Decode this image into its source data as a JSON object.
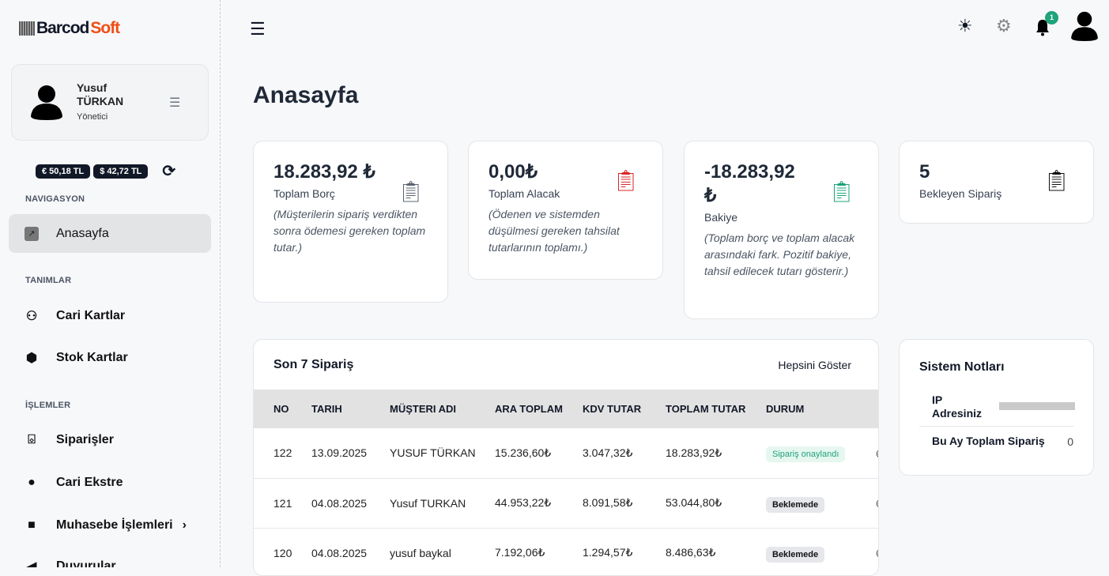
{
  "brand": {
    "name_part1": "Barcod",
    "name_part2": "Soft"
  },
  "user": {
    "name": "Yusuf TÜRKAN",
    "role": "Yönetici"
  },
  "rates": {
    "eur": "€ 50,18 TL",
    "usd": "$ 42,72 TL"
  },
  "sidebar": {
    "sections": [
      "NAVIGASYON",
      "TANIMLAR",
      "İŞLEMLER"
    ],
    "items": [
      {
        "label": "Anasayfa"
      },
      {
        "label": "Cari Kartlar"
      },
      {
        "label": "Stok Kartlar"
      },
      {
        "label": "Siparişler"
      },
      {
        "label": "Cari Ekstre"
      },
      {
        "label": "Muhasebe İşlemleri"
      },
      {
        "label": "Duyurular"
      }
    ]
  },
  "header": {
    "notifications": "1"
  },
  "page_title": "Anasayfa",
  "stats": [
    {
      "value": "18.283,92 ₺",
      "label": "Toplam Borç",
      "desc": "(Müşterilerin sipariş verdikten sonra ödemesi gereken toplam tutar.)",
      "color": "#5b6472"
    },
    {
      "value": "0,00₺",
      "label": "Toplam Alacak",
      "desc": "(Ödenen ve sistemden düşülmesi gereken tahsilat tutarlarının toplamı.)",
      "color": "#dc2626"
    },
    {
      "value": "-18.283,92₺",
      "label": "Bakiye",
      "desc": "(Toplam borç ve toplam alacak arasındaki fark. Pozitif bakiye, tahsil edilecek tutarı gösterir.)",
      "color": "#1fa37a"
    },
    {
      "value": "5",
      "label": "Bekleyen Sipariş",
      "color": "#111"
    }
  ],
  "orders": {
    "title": "Son 7 Sipariş",
    "show_all": "Hepsini Göster",
    "columns": [
      "NO",
      "TARIH",
      "MÜŞTERI ADI",
      "ARA TOPLAM",
      "KDV TUTAR",
      "TOPLAM TUTAR",
      "DURUM"
    ],
    "rows": [
      [
        "122",
        "13.09.2025",
        "YUSUF TÜRKAN",
        "15.236,60₺",
        "3.047,32₺",
        "18.283,92₺",
        "Sipariş onaylandı"
      ],
      [
        "121",
        "04.08.2025",
        "Yusuf TURKAN",
        "44.953,22₺",
        "8.091,58₺",
        "53.044,80₺",
        "Beklemede"
      ],
      [
        "120",
        "04.08.2025",
        "yusuf baykal",
        "7.192,06₺",
        "1.294,57₺",
        "8.486,63₺",
        "Beklemede"
      ]
    ]
  },
  "notes": {
    "title": "Sistem Notları",
    "ip_label": "IP Adresiniz",
    "month_label": "Bu Ay Toplam Sipariş",
    "month_value": "0"
  }
}
